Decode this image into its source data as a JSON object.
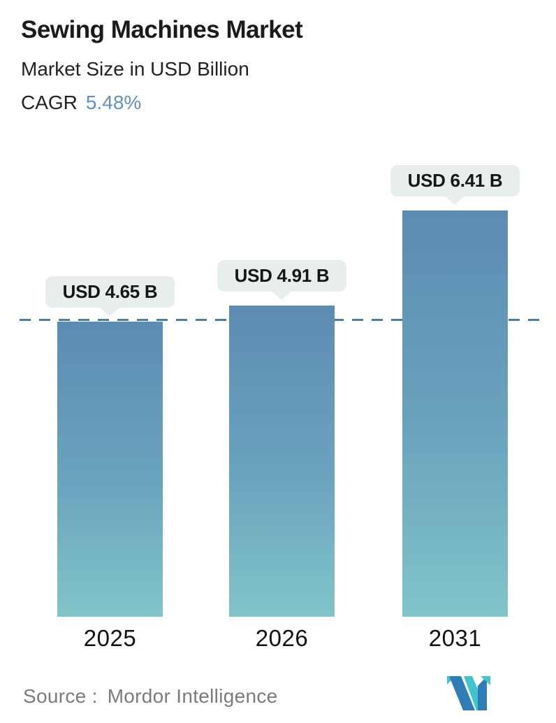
{
  "header": {
    "title": "Sewing Machines Market",
    "subtitle": "Market Size in USD Billion",
    "cagr_label": "CAGR",
    "cagr_value": "5.48%"
  },
  "chart_data": {
    "type": "bar",
    "categories": [
      "2025",
      "2026",
      "2031"
    ],
    "values": [
      4.65,
      4.91,
      6.41
    ],
    "bar_labels": [
      "USD 4.65 B",
      "USD 4.91 B",
      "USD 6.41 B"
    ],
    "title": "Sewing Machines Market",
    "subtitle": "Market Size in USD Billion",
    "unit": "USD Billion",
    "xlabel": "",
    "ylabel": "Market Size in USD Billion",
    "ylim": [
      0,
      7
    ],
    "grid": false,
    "legend": false,
    "dashed_reference_line_value": 4.65,
    "colors": {
      "bar_gradient_top": "#5c8cb2",
      "bar_gradient_bottom": "#81c4c9",
      "dashed_line": "#4b7da6",
      "label_bubble_bg": "#e8edee",
      "label_text": "#161616",
      "cagr_accent": "#6191bf"
    }
  },
  "footer": {
    "source_label": "Source :",
    "source_value": "Mordor Intelligence",
    "logo_icon": "mordor-intelligence-m-logo",
    "logo_colors": {
      "blue": "#2e7cb8",
      "teal": "#3fc5cd"
    }
  }
}
